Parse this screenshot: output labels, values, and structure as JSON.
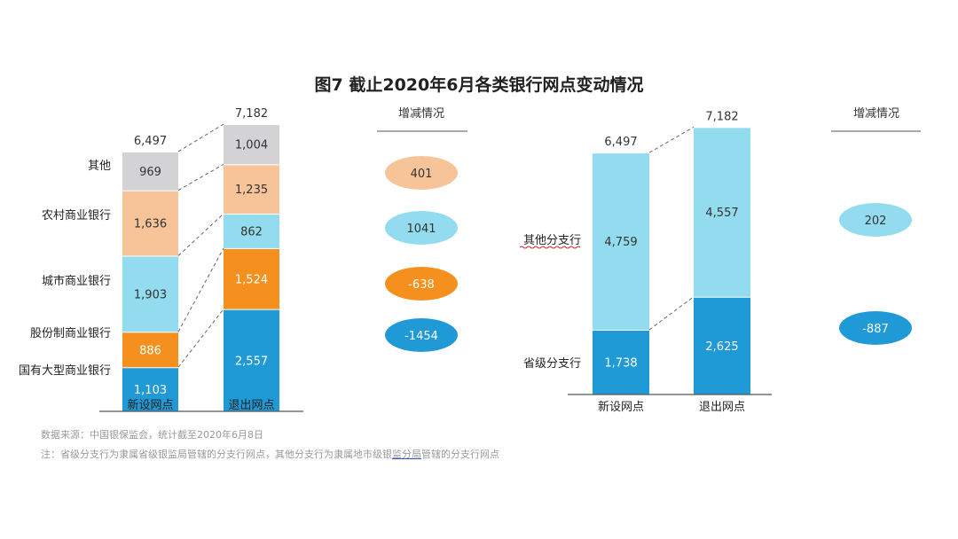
{
  "title": "图7   截止2020年6月各类银行网点变动情况",
  "colors": {
    "state": "#1f9ad6",
    "joint": "#f5901e",
    "city": "#93dcef",
    "rural": "#f7c49a",
    "other": "#d3d3d6",
    "text": "#333333"
  },
  "chart_data": [
    {
      "type": "bar",
      "stacked": true,
      "categories": [
        "新设网点",
        "退出网点"
      ],
      "totals": [
        "6,497",
        "7,182"
      ],
      "series": [
        {
          "name": "国有大型商业银行",
          "color": "#1f9ad6",
          "values": [
            1103,
            2557
          ],
          "labels": [
            "1,103",
            "2,557"
          ],
          "change": "-1454"
        },
        {
          "name": "股份制商业银行",
          "color": "#f5901e",
          "values": [
            886,
            1524
          ],
          "labels": [
            "886",
            "1,524"
          ],
          "change": "-638"
        },
        {
          "name": "城市商业银行",
          "color": "#93dcef",
          "values": [
            1903,
            862
          ],
          "labels": [
            "1,903",
            "862"
          ],
          "change": "1041"
        },
        {
          "name": "农村商业银行",
          "color": "#f7c49a",
          "values": [
            1636,
            1235
          ],
          "labels": [
            "1,636",
            "1,235"
          ],
          "change": "401"
        },
        {
          "name": "其他",
          "color": "#d3d3d6",
          "values": [
            969,
            1004
          ],
          "labels": [
            "969",
            "1,004"
          ],
          "change": null
        }
      ],
      "change_header": "增减情况",
      "grid": false
    },
    {
      "type": "bar",
      "stacked": true,
      "categories": [
        "新设网点",
        "退出网点"
      ],
      "totals": [
        "6,497",
        "7,182"
      ],
      "series": [
        {
          "name": "省级分支行",
          "color": "#1f9ad6",
          "values": [
            1738,
            2625
          ],
          "labels": [
            "1,738",
            "2,625"
          ],
          "change": "-887"
        },
        {
          "name": "其他分支行",
          "color": "#93dcef",
          "values": [
            4759,
            4557
          ],
          "labels": [
            "4,759",
            "4,557"
          ],
          "change": "202"
        }
      ],
      "change_header": "增减情况",
      "grid": false
    }
  ],
  "notes": {
    "source": "数据来源：中国银保监会，统计截至2020年6月8日",
    "note_a": "注：省级分支行为隶属省级银监局管辖的分支行网点，其他分支行为隶属地市级银",
    "note_b": "监分局",
    "note_c": "管辖的分支行网点"
  }
}
